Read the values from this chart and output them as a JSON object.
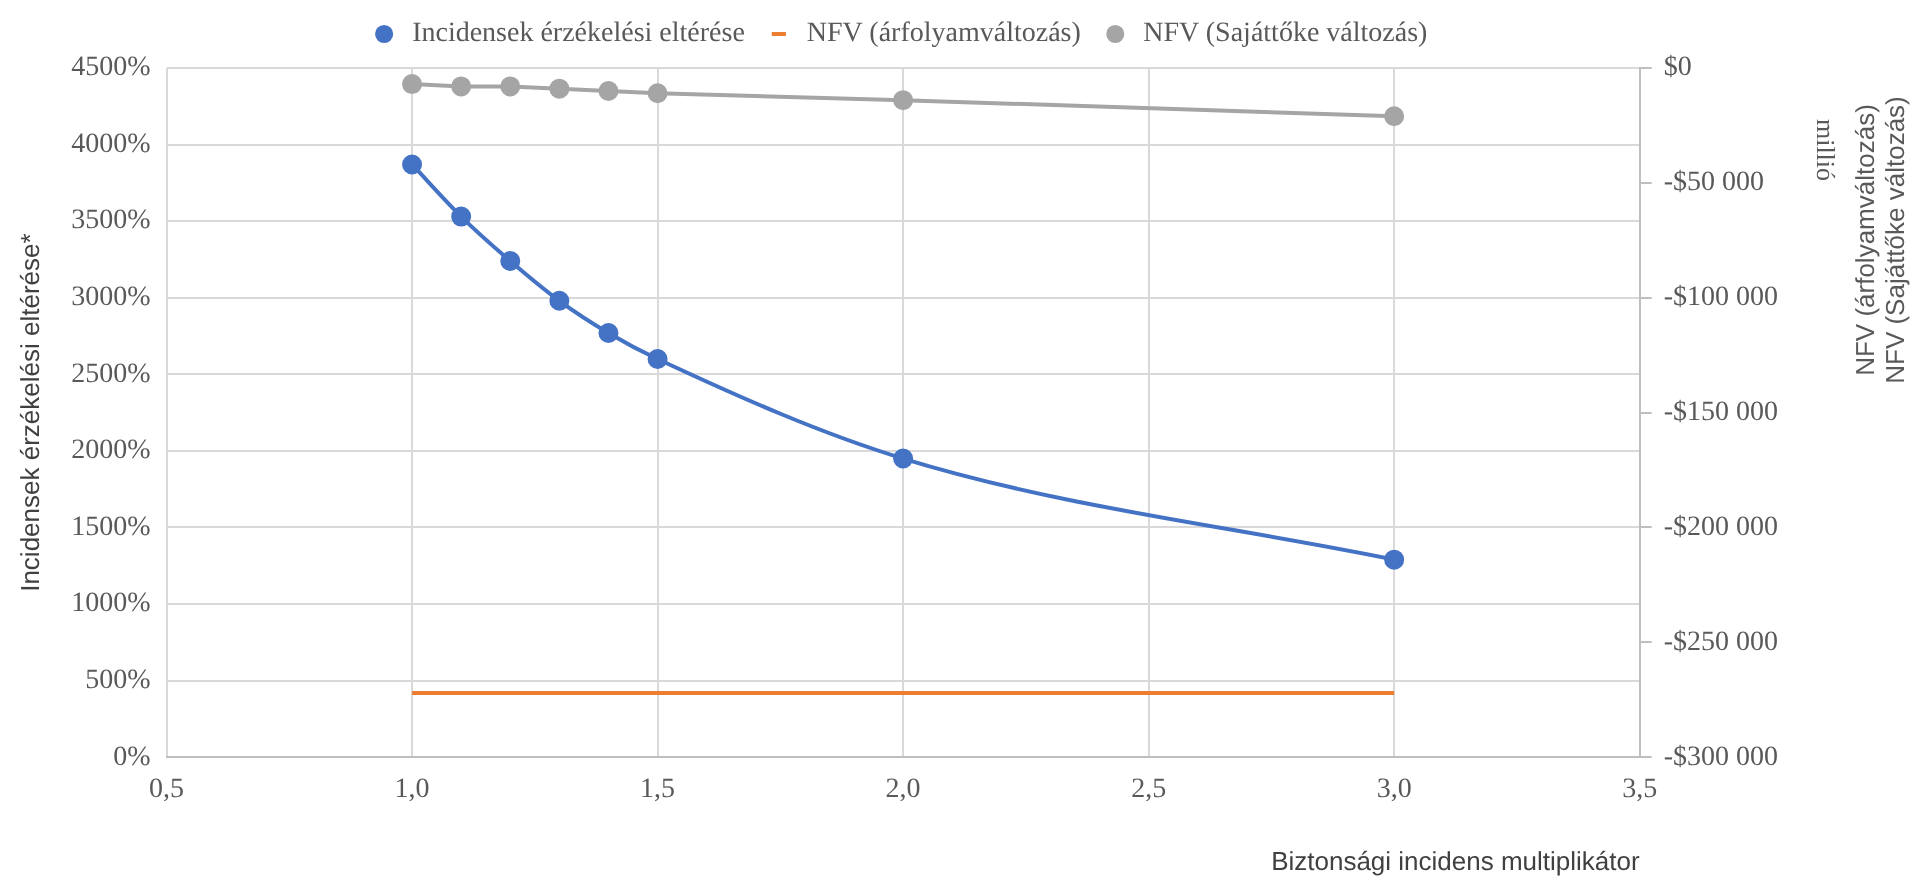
{
  "chart_data": {
    "type": "line",
    "xlabel": "Biztonsági incidens multiplikátor",
    "ylabel": "Incidensek érzékelési eltérése*",
    "y2label": "NFV (árfolyamváltozás)\nNFV (Sajáttőke változás)",
    "annotations": [
      "millió"
    ],
    "x": [
      1.0,
      1.1,
      1.2,
      1.3,
      1.4,
      1.5,
      2.0,
      3.0
    ],
    "series": [
      {
        "name": "Incidensek érzékelési eltérése",
        "color": "#4472c4",
        "values": [
          3870,
          3530,
          3240,
          2980,
          2770,
          2600,
          1950,
          1290
        ],
        "marker": "circle"
      },
      {
        "name": "NFV (árfolyamváltozás)",
        "color": "#ed7d31",
        "values": [
          -272000,
          -272000,
          -272000,
          -272000,
          -272000,
          -272000,
          -272000,
          -272000
        ],
        "axis": "y2",
        "marker": "none"
      },
      {
        "name": "NFV (Sajáttőke változás)",
        "color": "#a5a5a5",
        "values": [
          -7000,
          -8000,
          -8000,
          -9000,
          -10000,
          -11000,
          -14000,
          -21000
        ],
        "axis": "y2",
        "marker": "circle"
      }
    ],
    "xlim": [
      0.5,
      3.5
    ],
    "xticks": [
      {
        "value": 0.5,
        "label": "0,5"
      },
      {
        "value": 1.0,
        "label": "1,0"
      },
      {
        "value": 1.5,
        "label": "1,5"
      },
      {
        "value": 2.0,
        "label": "2,0"
      },
      {
        "value": 2.5,
        "label": "2,5"
      },
      {
        "value": 3.0,
        "label": "3,0"
      },
      {
        "value": 3.5,
        "label": "3,5"
      }
    ],
    "ylim": [
      0,
      4500
    ],
    "yticks": [
      {
        "value": 0,
        "label": "0%"
      },
      {
        "value": 500,
        "label": "500%"
      },
      {
        "value": 1000,
        "label": "1000%"
      },
      {
        "value": 1500,
        "label": "1500%"
      },
      {
        "value": 2000,
        "label": "2000%"
      },
      {
        "value": 2500,
        "label": "2500%"
      },
      {
        "value": 3000,
        "label": "3000%"
      },
      {
        "value": 3500,
        "label": "3500%"
      },
      {
        "value": 4000,
        "label": "4000%"
      },
      {
        "value": 4500,
        "label": "4500%"
      }
    ],
    "y2lim": [
      -300000,
      0
    ],
    "y2ticks": [
      {
        "value": 0,
        "label": "$0"
      },
      {
        "value": -50000,
        "label": "-$50 000"
      },
      {
        "value": -100000,
        "label": "-$100 000"
      },
      {
        "value": -150000,
        "label": "-$150 000"
      },
      {
        "value": -200000,
        "label": "-$200 000"
      },
      {
        "value": -250000,
        "label": "-$250 000"
      },
      {
        "value": -300000,
        "label": "-$300 000"
      }
    ],
    "grid": true,
    "legend": "top",
    "line_style": "solid"
  }
}
